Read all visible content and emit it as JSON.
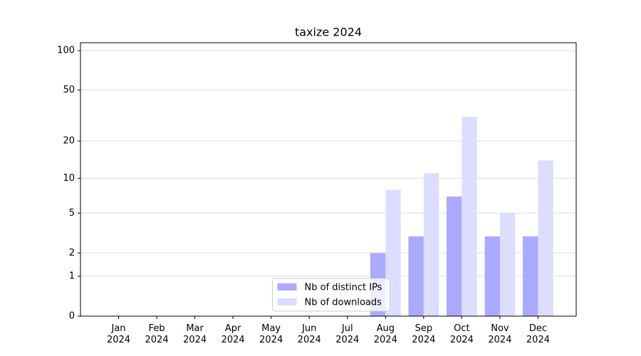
{
  "chart_data": {
    "type": "bar",
    "title": "taxize 2024",
    "categories": [
      "Jan\n2024",
      "Feb\n2024",
      "Mar\n2024",
      "Apr\n2024",
      "May\n2024",
      "Jun\n2024",
      "Jul\n2024",
      "Aug\n2024",
      "Sep\n2024",
      "Oct\n2024",
      "Nov\n2024",
      "Dec\n2024"
    ],
    "series": [
      {
        "name": "Nb of distinct IPs",
        "color": "#aaaaff",
        "values": [
          0,
          0,
          0,
          0,
          0,
          0,
          0,
          2,
          3,
          7,
          3,
          3
        ]
      },
      {
        "name": "Nb of downloads",
        "color": "#ddddff",
        "values": [
          0,
          0,
          0,
          0,
          0,
          0,
          0,
          8,
          11,
          31,
          5,
          14
        ]
      }
    ],
    "yscale": "log1p",
    "ylim": [
      0,
      115
    ],
    "yticks": [
      0,
      1,
      2,
      5,
      10,
      20,
      50,
      100
    ],
    "grid": true,
    "legend": "lower center"
  }
}
